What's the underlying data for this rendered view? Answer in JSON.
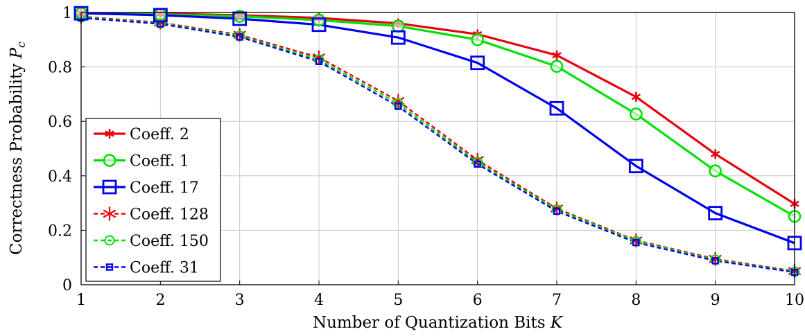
{
  "chart_data": {
    "type": "line",
    "title": "",
    "xlabel": "Number of Quantization Bits K",
    "ylabel": "Correctness Probability P_c",
    "x": [
      1,
      2,
      3,
      4,
      5,
      6,
      7,
      8,
      9,
      10
    ],
    "xlim": [
      1,
      10
    ],
    "ylim": [
      0,
      1
    ],
    "xticks": [
      "1",
      "2",
      "3",
      "4",
      "5",
      "6",
      "7",
      "8",
      "9",
      "10"
    ],
    "yticks": [
      "0",
      "0.2",
      "0.4",
      "0.6",
      "0.8",
      "1"
    ],
    "grid": true,
    "legend_position": "left",
    "series": [
      {
        "name": "Coeff. 2",
        "color": "#e8000b",
        "dash": "solid",
        "marker": "asterisk",
        "values": [
          0.998,
          0.996,
          0.99,
          0.98,
          0.96,
          0.92,
          0.843,
          0.69,
          0.48,
          0.297
        ]
      },
      {
        "name": "Coeff. 1",
        "color": "#00e000",
        "dash": "solid",
        "marker": "circle",
        "values": [
          0.997,
          0.993,
          0.986,
          0.972,
          0.95,
          0.9,
          0.802,
          0.627,
          0.418,
          0.251
        ]
      },
      {
        "name": "Coeff. 17",
        "color": "#0000ee",
        "dash": "solid",
        "marker": "square",
        "values": [
          0.997,
          0.99,
          0.977,
          0.955,
          0.908,
          0.815,
          0.648,
          0.436,
          0.263,
          0.153
        ]
      },
      {
        "name": "Coeff. 128",
        "color": "#e8000b",
        "dash": "dashed",
        "marker": "asterisk",
        "values": [
          0.985,
          0.963,
          0.918,
          0.835,
          0.675,
          0.458,
          0.28,
          0.163,
          0.095,
          0.05
        ]
      },
      {
        "name": "Coeff. 150",
        "color": "#00e000",
        "dash": "dashed",
        "marker": "circle",
        "values": [
          0.983,
          0.96,
          0.914,
          0.827,
          0.665,
          0.45,
          0.276,
          0.16,
          0.092,
          0.048
        ]
      },
      {
        "name": "Coeff. 31",
        "color": "#0000ee",
        "dash": "dashed",
        "marker": "square-small",
        "values": [
          0.98,
          0.958,
          0.91,
          0.82,
          0.655,
          0.443,
          0.27,
          0.155,
          0.088,
          0.046
        ]
      }
    ]
  }
}
